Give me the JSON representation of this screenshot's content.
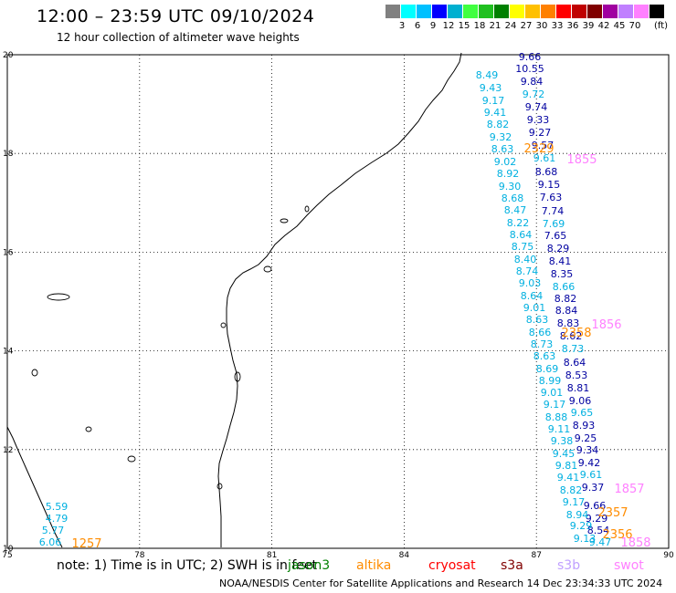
{
  "header": {
    "title": "12:00 – 23:59 UTC 09/10/2024",
    "subtitle": "12 hour collection of altimeter wave heights"
  },
  "scale": {
    "colors": [
      "#808080",
      "#00ffff",
      "#00c0ff",
      "#0000ff",
      "#00b0d0",
      "#40ff40",
      "#20c020",
      "#008000",
      "#ffff00",
      "#ffc000",
      "#ff8000",
      "#ff0000",
      "#c00000",
      "#800000",
      "#a000a0",
      "#c080ff",
      "#ff80ff",
      "#000000"
    ],
    "labels": [
      "3",
      "6",
      "9",
      "12",
      "15",
      "18",
      "21",
      "24",
      "27",
      "30",
      "33",
      "36",
      "39",
      "42",
      "45",
      "70"
    ],
    "unit": "(ft)"
  },
  "axes": {
    "x_ticks": [
      "75",
      "78",
      "81",
      "84",
      "87",
      "90"
    ],
    "y_ticks": [
      "20",
      "18",
      "16",
      "14",
      "12",
      "10"
    ],
    "lon_range": [
      75,
      90
    ],
    "lat_range": [
      10,
      20
    ]
  },
  "colors": {
    "dark_blue": "#0000a0",
    "light_blue": "#00b0e0",
    "orange": "#ff8c00",
    "pink": "#ff80ff"
  },
  "tracks": [
    {
      "lon": 87.7,
      "color": "dark_blue",
      "values": [
        "9.66",
        "10.55",
        "9.84",
        "9.72",
        "9.74",
        "9.33",
        "9.27",
        "9.57",
        "9.61",
        "8.68",
        "9.15",
        "7.63",
        "7.74",
        "7.69",
        "7.65",
        "8.29",
        "8.41",
        "8.35",
        "8.66",
        "8.82",
        "8.84",
        "8.83",
        "8.62",
        "8.73",
        "8.64",
        "8.53",
        "8.81",
        "9.06",
        "9.65",
        "8.93",
        "9.25",
        "9.34",
        "9.42",
        "9.61",
        "9.37",
        "9.66",
        "9.29",
        "8.54",
        "9.47"
      ],
      "lat": [
        19.83,
        19.63,
        19.43,
        19.23,
        19.03,
        18.83,
        18.63,
        18.43,
        18.23,
        18.03,
        17.83,
        17.63,
        17.43,
        17.23,
        17.03,
        16.83,
        16.63,
        16.43,
        16.23,
        16.03,
        15.83,
        15.63,
        15.43,
        15.23,
        15.03,
        14.83,
        14.63,
        14.43,
        14.23,
        14.03,
        13.83,
        13.63,
        13.43,
        13.23,
        13.03,
        12.83,
        12.63,
        12.43,
        12.23
      ]
    },
    {
      "lon": 86.8,
      "color": "light_blue",
      "values": [
        "8.49",
        "9.43",
        "9.17",
        "9.41",
        "8.82",
        "9.32",
        "8.63",
        "9.02",
        "8.92",
        "9.30",
        "8.68",
        "8.47",
        "8.22",
        "8.64",
        "8.75",
        "8.40",
        "8.74",
        "9.03",
        "8.64",
        "9.01",
        "8.63",
        "8.66",
        "8.73",
        "8.63",
        "8.69",
        "8.99",
        "9.01",
        "9.17",
        "8.88",
        "9.11",
        "9.38",
        "9.45",
        "9.81",
        "9.41",
        "8.82",
        "9.17",
        "8.94",
        "9.29",
        "9.13"
      ],
      "lat": [
        19.58,
        19.38,
        19.18,
        18.98,
        18.78,
        18.58,
        18.38,
        18.18,
        17.98,
        17.78,
        17.58,
        17.38,
        17.18,
        16.98,
        16.78,
        16.58,
        16.38,
        16.18,
        15.98,
        15.78,
        15.58,
        15.38,
        15.18,
        14.98,
        14.78,
        14.58,
        14.38,
        14.18,
        13.98,
        13.78,
        13.58,
        13.38,
        13.18,
        12.98,
        12.78,
        12.58,
        12.38,
        12.18,
        11.98
      ]
    },
    {
      "lon": 75.3,
      "color": "light_blue",
      "values": [
        "5.59",
        "4.79",
        "5.77",
        "6.06"
      ],
      "lat": [
        10.65,
        10.4,
        10.15,
        9.95
      ]
    }
  ],
  "time_labels": [
    {
      "text": "2329",
      "color": "orange"
    },
    {
      "text": "1855",
      "color": "pink"
    },
    {
      "text": "2358",
      "color": "orange"
    },
    {
      "text": "1856",
      "color": "pink"
    },
    {
      "text": "1857",
      "color": "pink"
    },
    {
      "text": "2357",
      "color": "orange"
    },
    {
      "text": "2356",
      "color": "orange"
    },
    {
      "text": "1858",
      "color": "pink"
    },
    {
      "text": "1257",
      "color": "orange"
    }
  ],
  "footer": {
    "note": "note:  1) Time is in UTC; 2) SWH is in feet",
    "satellites": [
      {
        "name": "jason3",
        "color": "#008000"
      },
      {
        "name": "altika",
        "color": "#ff8c00"
      },
      {
        "name": "cryosat",
        "color": "#ff0000"
      },
      {
        "name": "s3a",
        "color": "#800000"
      },
      {
        "name": "s3b",
        "color": "#c0a0ff"
      },
      {
        "name": "swot",
        "color": "#ff80ff"
      }
    ],
    "credit": "NOAA/NESDIS Center for Satellite Applications and Research     14 Dec 23:34:33 UTC 2024"
  }
}
